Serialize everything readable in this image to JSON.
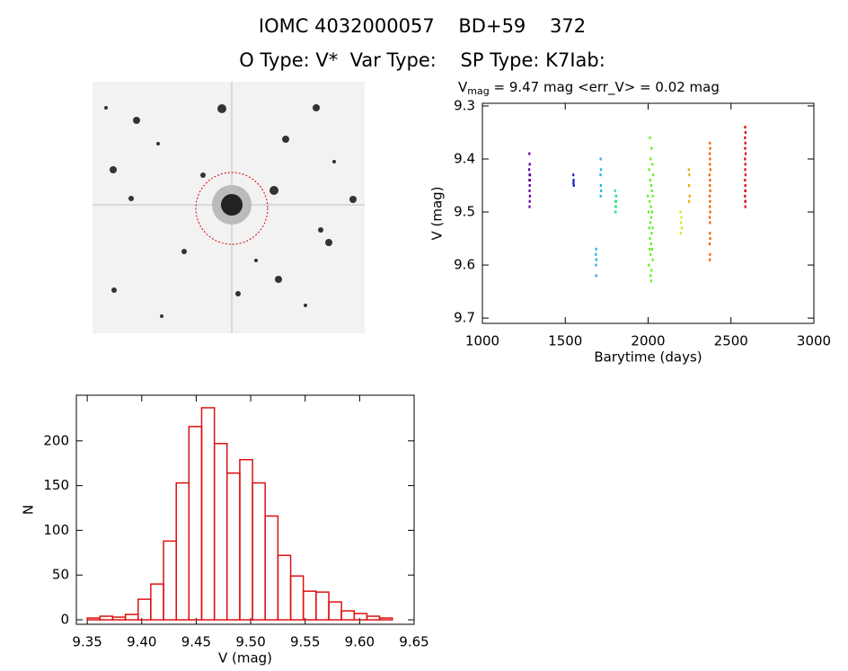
{
  "header": {
    "title": "IOMC 4032000057    BD+59    372",
    "subtitle": "O Type: V*  Var Type:    SP Type: K7Iab:"
  },
  "chart_data": [
    {
      "type": "scatter",
      "title": {
        "main": "V",
        "sub": "mag",
        "rest": " = 9.47 mag <err_V> = 0.02 mag"
      },
      "x_label": "Barytime (days)",
      "y_label": "V (mag)",
      "xlim": [
        1000,
        3000
      ],
      "xticks": [
        1000,
        1500,
        2000,
        2500,
        3000
      ],
      "ylim": [
        9.71,
        9.295
      ],
      "yticks": [
        9.3,
        9.4,
        9.5,
        9.6,
        9.7
      ],
      "series": [
        {
          "color": "#6000a0",
          "x": [
            1283,
            1285,
            1282,
            1284,
            1287,
            1283,
            1286,
            1285,
            1284,
            1286,
            1285,
            1284
          ],
          "values": [
            9.39,
            9.41,
            9.42,
            9.43,
            9.43,
            9.44,
            9.44,
            9.45,
            9.46,
            9.47,
            9.48,
            9.49
          ]
        },
        {
          "color": "#1020c0",
          "x": [
            1548,
            1550,
            1549,
            1551
          ],
          "values": [
            9.43,
            9.44,
            9.445,
            9.45
          ]
        },
        {
          "color": "#20b0e0",
          "x": [
            1713,
            1715,
            1712,
            1714,
            1716,
            1713,
            1686,
            1684,
            1687,
            1685,
            1686
          ],
          "values": [
            9.4,
            9.42,
            9.43,
            9.45,
            9.46,
            9.47,
            9.57,
            9.58,
            9.59,
            9.6,
            9.62
          ]
        },
        {
          "color": "#30e890",
          "x": [
            1800,
            1805,
            1802,
            1808,
            1803,
            1806,
            1801,
            1804,
            1807
          ],
          "values": [
            9.46,
            9.47,
            9.48,
            9.48,
            9.49,
            9.49,
            9.5,
            9.5,
            9.47
          ]
        },
        {
          "color": "#60f020",
          "x": [
            2010,
            2020,
            2015,
            2025,
            2005,
            2030,
            2012,
            2018,
            2022,
            1998,
            2028,
            2008,
            2016,
            2024,
            2002,
            2019,
            2013,
            2026,
            2006,
            2021,
            2011,
            2017,
            2023,
            2009,
            2014,
            2027,
            2004,
            2020,
            2015,
            2018
          ],
          "values": [
            9.36,
            9.38,
            9.4,
            9.41,
            9.42,
            9.43,
            9.44,
            9.45,
            9.46,
            9.47,
            9.47,
            9.48,
            9.49,
            9.5,
            9.5,
            9.51,
            9.52,
            9.53,
            9.53,
            9.54,
            9.55,
            9.56,
            9.57,
            9.57,
            9.58,
            9.59,
            9.6,
            9.61,
            9.62,
            9.63
          ]
        },
        {
          "color": "#c8f020",
          "x": [
            2195,
            2200,
            2198,
            2202,
            2197
          ],
          "values": [
            9.5,
            9.51,
            9.52,
            9.53,
            9.54
          ]
        },
        {
          "color": "#e0b000",
          "x": [
            2245,
            2248,
            2246,
            2250,
            2247
          ],
          "values": [
            9.42,
            9.43,
            9.45,
            9.47,
            9.48
          ]
        },
        {
          "color": "#f06000",
          "x": [
            2372,
            2374,
            2371,
            2373,
            2372,
            2375,
            2370,
            2373,
            2372,
            2374,
            2371,
            2373,
            2372,
            2374,
            2371,
            2373,
            2372,
            2374,
            2371,
            2373,
            2372
          ],
          "values": [
            9.37,
            9.38,
            9.39,
            9.4,
            9.41,
            9.42,
            9.43,
            9.44,
            9.45,
            9.46,
            9.47,
            9.48,
            9.49,
            9.5,
            9.51,
            9.52,
            9.54,
            9.55,
            9.56,
            9.58,
            9.59
          ]
        },
        {
          "color": "#e00000",
          "x": [
            2585,
            2587,
            2584,
            2586,
            2585,
            2588,
            2584,
            2586,
            2585,
            2587,
            2584,
            2586,
            2585,
            2587,
            2584,
            2586,
            2585,
            2586
          ],
          "values": [
            9.34,
            9.35,
            9.36,
            9.37,
            9.38,
            9.39,
            9.4,
            9.41,
            9.42,
            9.43,
            9.44,
            9.45,
            9.46,
            9.46,
            9.47,
            9.48,
            9.48,
            9.49
          ]
        }
      ]
    },
    {
      "type": "histogram",
      "x_label": "V (mag)",
      "y_label": "N",
      "color": "#dd1111",
      "bins": [
        9.35,
        9.3617,
        9.3733,
        9.385,
        9.3967,
        9.4083,
        9.42,
        9.4317,
        9.4433,
        9.455,
        9.4667,
        9.4783,
        9.49,
        9.5017,
        9.5133,
        9.525,
        9.5367,
        9.5483,
        9.56,
        9.5717,
        9.5833,
        9.595,
        9.6067,
        9.6183,
        9.63
      ],
      "values": [
        2,
        4,
        3,
        6,
        23,
        40,
        88,
        153,
        216,
        237,
        197,
        164,
        179,
        153,
        116,
        72,
        49,
        32,
        31,
        20,
        10,
        7,
        4,
        2
      ],
      "xlim": [
        9.34,
        9.65
      ],
      "xticks": [
        9.35,
        {
          "value": 9.4,
          "label": "9.40"
        },
        9.45,
        {
          "value": 9.5,
          "label": "9.50"
        },
        9.55,
        {
          "value": 9.6,
          "label": "9.60"
        },
        9.65
      ],
      "ylim": [
        -5,
        251
      ],
      "yticks": [
        0,
        50,
        100,
        150,
        200
      ]
    }
  ]
}
